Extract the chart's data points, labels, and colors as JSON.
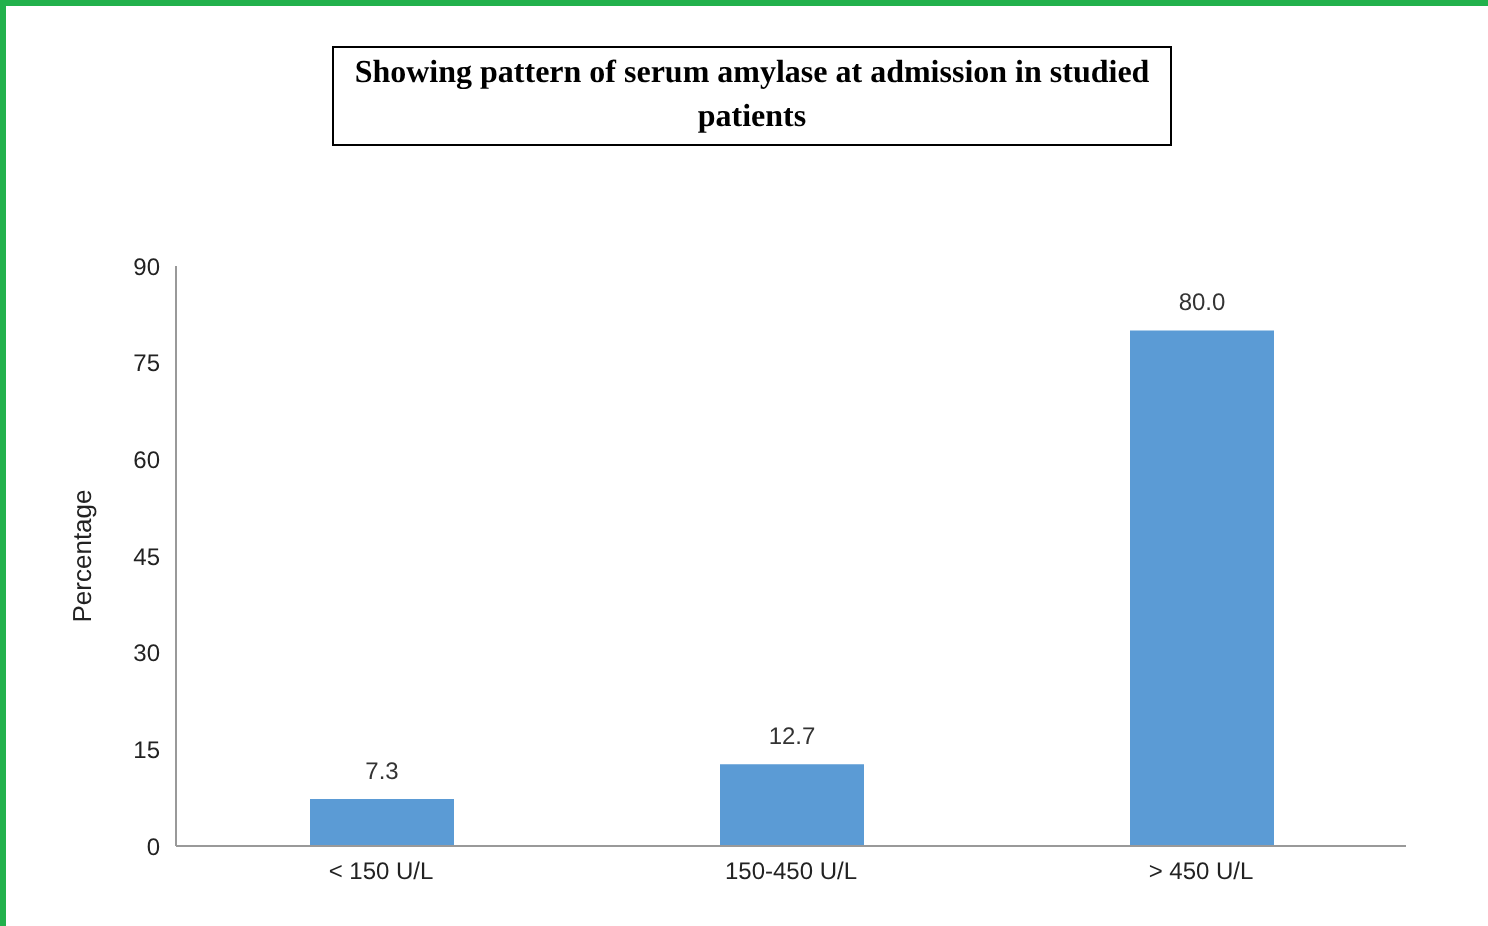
{
  "chart_data": {
    "type": "bar",
    "title": "Showing pattern of serum amylase at admission in studied patients",
    "ylabel": "Percentage",
    "categories": [
      "< 150 U/L",
      "150-450 U/L",
      "> 450 U/L"
    ],
    "values": [
      7.3,
      12.7,
      80.0
    ],
    "value_labels": [
      "7.3",
      "12.7",
      "80.0"
    ],
    "color": "#5b9bd5",
    "ylim": [
      0,
      90
    ],
    "yticks": [
      0,
      15,
      30,
      45,
      60,
      75,
      90
    ],
    "grid": false,
    "legend": false
  }
}
